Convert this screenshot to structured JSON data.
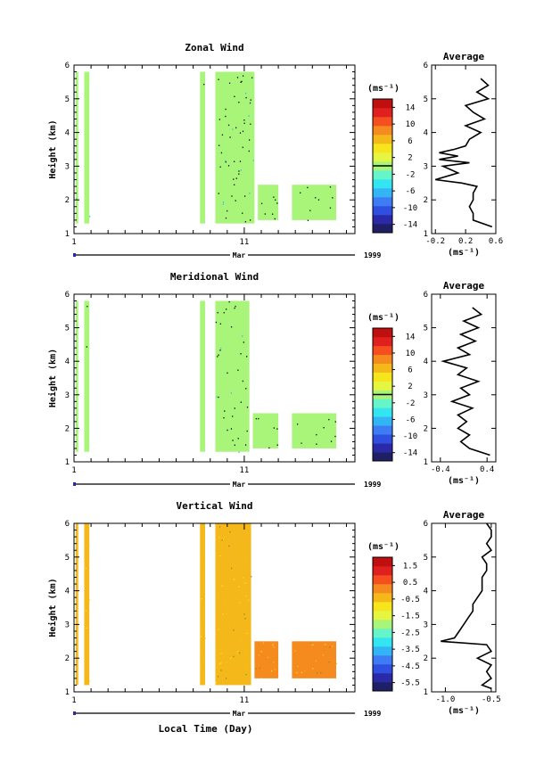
{
  "chart_data": [
    {
      "type": "heatmap",
      "title": "Zonal Wind",
      "ylabel": "Height (km)",
      "xlabel": "",
      "ylim": [
        1,
        6
      ],
      "yticks": [
        "1",
        "2",
        "3",
        "4",
        "5",
        "6"
      ],
      "xlim": [
        1,
        17.5
      ],
      "xticks": [
        "1",
        "11"
      ],
      "month_label": "Mar",
      "year_label": "1999",
      "colorbar": {
        "unit_label": "(ms⁻¹)",
        "ticks": [
          "14",
          "10",
          "6",
          "2",
          "-2",
          "-6",
          "-10",
          "-14"
        ],
        "range": [
          -16,
          16
        ],
        "colors": [
          "#1f1f66",
          "#2a2aa8",
          "#2f4fe0",
          "#3d7cf5",
          "#33b5f5",
          "#33e5f0",
          "#66f5c8",
          "#a8f57a",
          "#e5f540",
          "#f5e51a",
          "#f5b81a",
          "#f58a1f",
          "#f54f1f",
          "#e01f1f",
          "#c00f0f"
        ]
      },
      "observation_blocks": [
        {
          "x0": 1.1,
          "x1": 1.25,
          "y0": 1.3,
          "y1": 5.8,
          "value": 0
        },
        {
          "x0": 1.6,
          "x1": 1.9,
          "y0": 1.3,
          "y1": 5.8,
          "value": 0
        },
        {
          "x0": 8.4,
          "x1": 8.7,
          "y0": 1.3,
          "y1": 5.8,
          "value": 0
        },
        {
          "x0": 9.3,
          "x1": 11.6,
          "y0": 1.3,
          "y1": 5.8,
          "value": 0
        },
        {
          "x0": 11.8,
          "x1": 13.0,
          "y0": 1.4,
          "y1": 2.45,
          "value": 0
        },
        {
          "x0": 13.8,
          "x1": 16.4,
          "y0": 1.4,
          "y1": 2.45,
          "value": 0
        }
      ],
      "profile": {
        "title": "Average",
        "xlabel": "(ms⁻¹)",
        "xticks": [
          "-0.2",
          "0.2",
          "0.6"
        ],
        "xlim": [
          -0.25,
          0.6
        ],
        "heights": [
          1.2,
          1.4,
          1.6,
          1.8,
          2.0,
          2.2,
          2.4,
          2.5,
          2.6,
          2.8,
          3.0,
          3.1,
          3.2,
          3.3,
          3.4,
          3.5,
          3.6,
          3.8,
          4.0,
          4.2,
          4.4,
          4.6,
          4.8,
          5.0,
          5.2,
          5.4,
          5.6
        ],
        "values": [
          0.55,
          0.3,
          0.3,
          0.25,
          0.3,
          0.3,
          0.35,
          0.15,
          -0.2,
          0.1,
          -0.1,
          0.25,
          -0.15,
          0.1,
          -0.15,
          0.05,
          0.2,
          0.25,
          0.4,
          0.2,
          0.45,
          0.3,
          0.2,
          0.5,
          0.35,
          0.5,
          0.4
        ]
      }
    },
    {
      "type": "heatmap",
      "title": "Meridional Wind",
      "ylabel": "Height (km)",
      "xlabel": "",
      "ylim": [
        1,
        6
      ],
      "yticks": [
        "1",
        "2",
        "3",
        "4",
        "5",
        "6"
      ],
      "xlim": [
        1,
        17.5
      ],
      "xticks": [
        "1",
        "11"
      ],
      "month_label": "Mar",
      "year_label": "1999",
      "colorbar": {
        "unit_label": "(ms⁻¹)",
        "ticks": [
          "14",
          "10",
          "6",
          "2",
          "-2",
          "-6",
          "-10",
          "-14"
        ],
        "range": [
          -16,
          16
        ],
        "colors": [
          "#1f1f66",
          "#2a2aa8",
          "#2f4fe0",
          "#3d7cf5",
          "#33b5f5",
          "#33e5f0",
          "#66f5c8",
          "#a8f57a",
          "#e5f540",
          "#f5e51a",
          "#f5b81a",
          "#f58a1f",
          "#f54f1f",
          "#e01f1f",
          "#c00f0f"
        ]
      },
      "observation_blocks": [
        {
          "x0": 1.1,
          "x1": 1.25,
          "y0": 1.3,
          "y1": 5.8,
          "value": 0
        },
        {
          "x0": 1.6,
          "x1": 1.9,
          "y0": 1.3,
          "y1": 5.8,
          "value": 0
        },
        {
          "x0": 8.4,
          "x1": 8.7,
          "y0": 1.3,
          "y1": 5.8,
          "value": 0
        },
        {
          "x0": 9.3,
          "x1": 11.3,
          "y0": 1.3,
          "y1": 5.8,
          "value": 0
        },
        {
          "x0": 11.5,
          "x1": 13.0,
          "y0": 1.4,
          "y1": 2.45,
          "value": 0
        },
        {
          "x0": 13.8,
          "x1": 16.4,
          "y0": 1.4,
          "y1": 2.45,
          "value": 0
        }
      ],
      "profile": {
        "title": "Average",
        "xlabel": "(ms⁻¹)",
        "xticks": [
          "-0.4",
          "0.4"
        ],
        "xlim": [
          -0.55,
          0.55
        ],
        "heights": [
          1.2,
          1.4,
          1.6,
          1.8,
          2.0,
          2.2,
          2.4,
          2.6,
          2.8,
          3.0,
          3.2,
          3.4,
          3.6,
          3.8,
          4.0,
          4.2,
          4.4,
          4.6,
          4.8,
          5.0,
          5.2,
          5.4,
          5.6
        ],
        "values": [
          0.45,
          0.1,
          -0.05,
          0.1,
          -0.1,
          0.05,
          -0.1,
          0.15,
          -0.2,
          0.1,
          -0.05,
          0.25,
          -0.1,
          0.05,
          -0.35,
          0.1,
          -0.1,
          0.2,
          -0.05,
          0.25,
          0.0,
          0.3,
          0.15
        ]
      }
    },
    {
      "type": "heatmap",
      "title": "Vertical Wind",
      "ylabel": "Height (km)",
      "xlabel": "Local Time (Day)",
      "ylim": [
        1,
        6
      ],
      "yticks": [
        "1",
        "2",
        "3",
        "4",
        "5",
        "6"
      ],
      "xlim": [
        1,
        17.5
      ],
      "xticks": [
        "1",
        "11"
      ],
      "month_label": "Mar",
      "year_label": "1999",
      "colorbar": {
        "unit_label": "(ms⁻¹)",
        "ticks": [
          "1.5",
          "0.5",
          "-0.5",
          "-1.5",
          "-2.5",
          "-3.5",
          "-4.5",
          "-5.5"
        ],
        "range": [
          -6,
          2
        ],
        "colors": [
          "#1f1f66",
          "#2a2aa8",
          "#2f4fe0",
          "#3d7cf5",
          "#33b5f5",
          "#33e5f0",
          "#66f5c8",
          "#a8f57a",
          "#e5f540",
          "#f5e51a",
          "#f5b81a",
          "#f58a1f",
          "#f54f1f",
          "#e01f1f",
          "#c00f0f"
        ]
      },
      "observation_blocks": [
        {
          "x0": 1.1,
          "x1": 1.25,
          "y0": 1.2,
          "y1": 6.0,
          "value": -0.6
        },
        {
          "x0": 1.6,
          "x1": 1.9,
          "y0": 1.2,
          "y1": 6.0,
          "value": -0.6
        },
        {
          "x0": 8.4,
          "x1": 8.7,
          "y0": 1.2,
          "y1": 6.0,
          "value": -0.6
        },
        {
          "x0": 9.3,
          "x1": 11.4,
          "y0": 1.2,
          "y1": 6.0,
          "value": -0.6
        },
        {
          "x0": 11.6,
          "x1": 13.0,
          "y0": 1.4,
          "y1": 2.5,
          "value": 0.0
        },
        {
          "x0": 13.8,
          "x1": 16.4,
          "y0": 1.4,
          "y1": 2.5,
          "value": 0.0
        }
      ],
      "profile": {
        "title": "Average",
        "xlabel": "(ms⁻¹)",
        "xticks": [
          "-1.0",
          "-0.5"
        ],
        "xlim": [
          -1.15,
          -0.45
        ],
        "heights": [
          1.1,
          1.2,
          1.4,
          1.6,
          1.8,
          2.0,
          2.2,
          2.4,
          2.5,
          2.6,
          2.8,
          3.0,
          3.2,
          3.4,
          3.6,
          3.8,
          4.0,
          4.2,
          4.4,
          4.6,
          4.8,
          5.0,
          5.2,
          5.4,
          5.6,
          5.8,
          6.0
        ],
        "values": [
          -0.5,
          -0.6,
          -0.5,
          -0.55,
          -0.5,
          -0.65,
          -0.5,
          -0.55,
          -1.05,
          -0.9,
          -0.85,
          -0.8,
          -0.75,
          -0.7,
          -0.7,
          -0.65,
          -0.6,
          -0.6,
          -0.6,
          -0.55,
          -0.55,
          -0.6,
          -0.5,
          -0.55,
          -0.5,
          -0.5,
          -0.55
        ]
      }
    }
  ]
}
